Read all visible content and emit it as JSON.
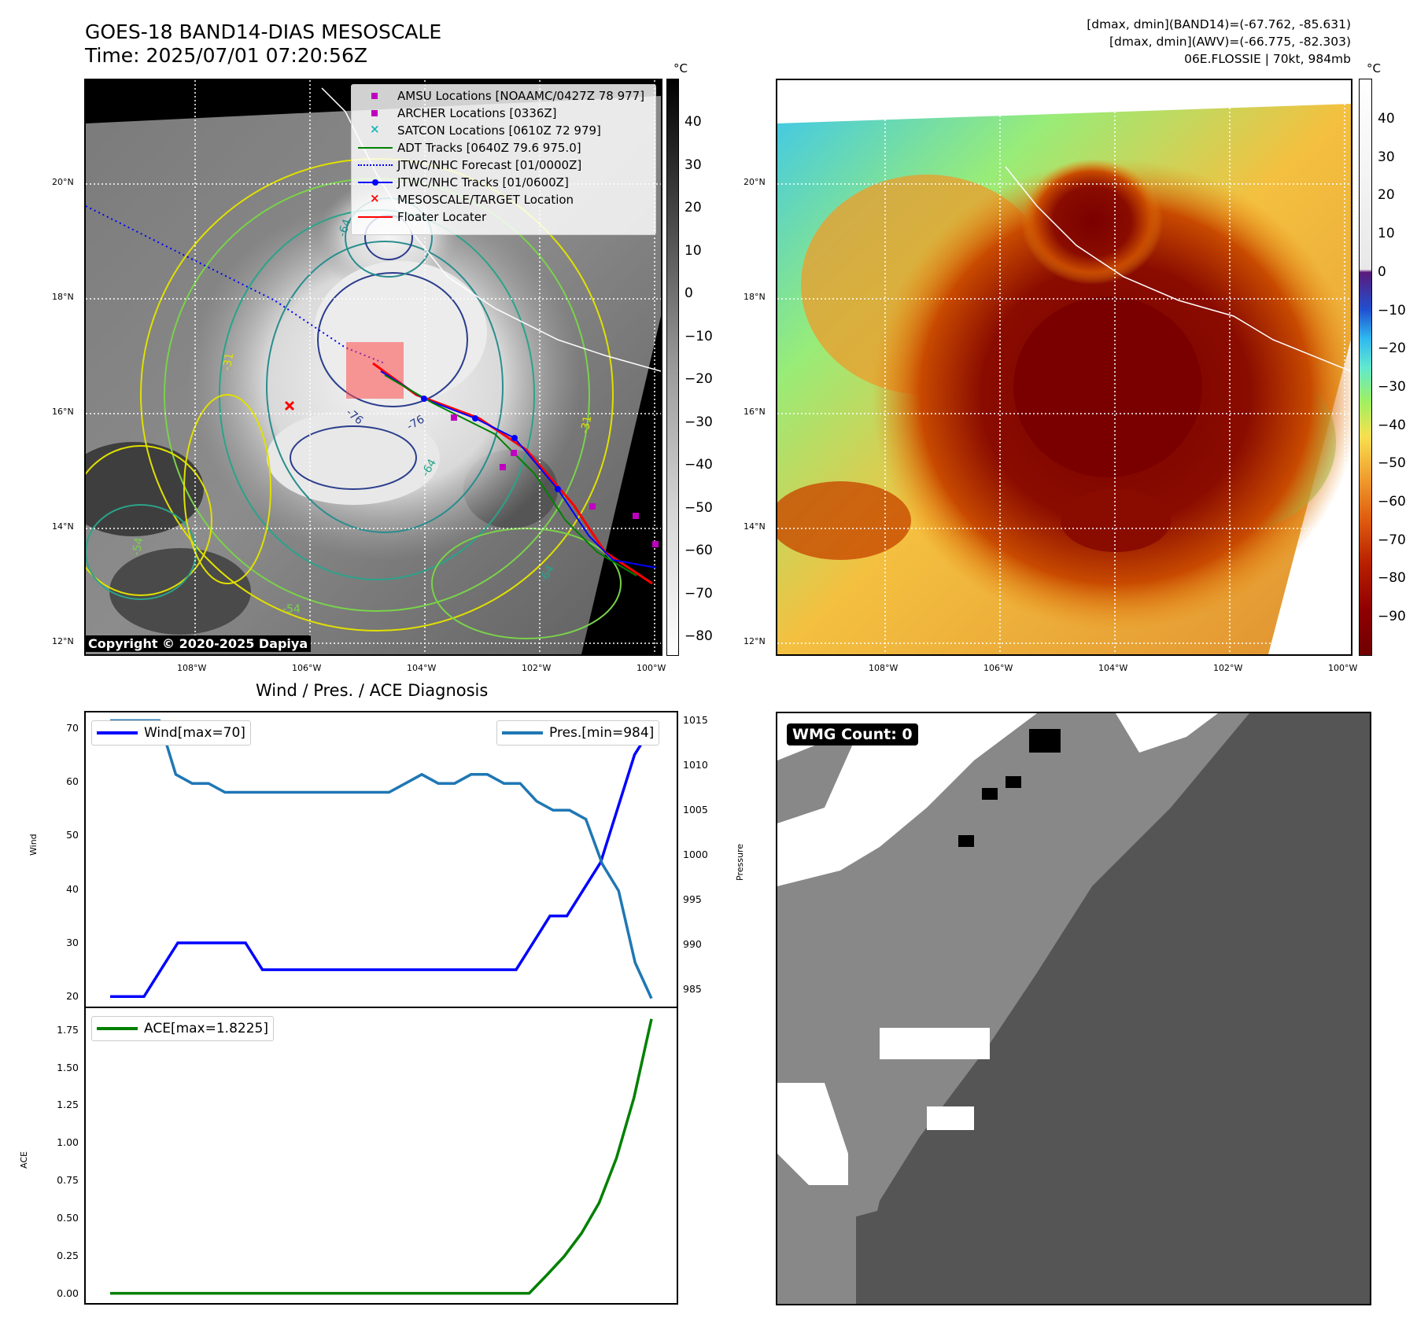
{
  "header": {
    "title": "GOES-18 BAND14-DIAS MESOSCALE",
    "time": "Time: 2025/07/01 07:20:56Z",
    "stats_band14": "[dmax, dmin](BAND14)=(-67.762, -85.631)",
    "stats_awv": "[dmax, dmin](AWV)=(-66.775, -82.303)",
    "storm_info": "06E.FLOSSIE | 70kt, 984mb"
  },
  "map": {
    "lat_ticks": [
      "20°N",
      "18°N",
      "16°N",
      "14°N",
      "12°N"
    ],
    "lon_ticks": [
      "108°W",
      "106°W",
      "104°W",
      "102°W",
      "100°W"
    ],
    "contour_labels": [
      "-64",
      "-76",
      "-76",
      "-31",
      "-54",
      "-64",
      "-31",
      "-64",
      "-54"
    ],
    "copyright": "Copyright © 2020-2025 Dapiya",
    "legend": [
      {
        "label": "AMSU Locations [NOAAMC/0427Z 78 977]",
        "color": "#c000c0",
        "symbol": "square"
      },
      {
        "label": "ARCHER Locations [0336Z]",
        "color": "#c000c0",
        "symbol": "square"
      },
      {
        "label": "SATCON Locations [0610Z 72 979]",
        "color": "#18b8b8",
        "symbol": "x"
      },
      {
        "label": "ADT Tracks [0640Z 79.6 975.0]",
        "color": "#008000",
        "symbol": "line"
      },
      {
        "label": "JTWC/NHC Forecast [01/0000Z]",
        "color": "#0000ff",
        "symbol": "dotted"
      },
      {
        "label": "JTWC/NHC Tracks [01/0600Z]",
        "color": "#0000ff",
        "symbol": "line-dot"
      },
      {
        "label": "MESOSCALE/TARGET Location",
        "color": "#ff0000",
        "symbol": "x"
      },
      {
        "label": "Floater Locater",
        "color": "#ff0000",
        "symbol": "line"
      }
    ]
  },
  "colorbar_gray": {
    "unit": "°C",
    "labels": [
      "40",
      "30",
      "20",
      "10",
      "0",
      "−10",
      "−20",
      "−30",
      "−40",
      "−50",
      "−60",
      "−70",
      "−80"
    ]
  },
  "colorbar_color": {
    "unit": "°C",
    "labels": [
      "40",
      "30",
      "20",
      "10",
      "0",
      "−10",
      "−20",
      "−30",
      "−40",
      "−50",
      "−60",
      "−70",
      "−80",
      "−90"
    ]
  },
  "diagnosis": {
    "title": "Wind / Pres. / ACE Diagnosis",
    "wind_legend": "Wind[max=70]",
    "pres_legend": "Pres.[min=984]",
    "ace_legend": "ACE[max=1.8225]",
    "wind_axis_label": "Wind",
    "pres_axis_label": "Pressure",
    "ace_axis_label": "ACE",
    "wind_ticks": [
      "70",
      "60",
      "50",
      "40",
      "30",
      "20"
    ],
    "pres_ticks": [
      "1015",
      "1010",
      "1005",
      "1000",
      "995",
      "990",
      "985"
    ],
    "ace_ticks": [
      "1.75",
      "1.50",
      "1.25",
      "1.00",
      "0.75",
      "0.50",
      "0.25",
      "0.00"
    ]
  },
  "wmg": {
    "label": "WMG Count: 0"
  },
  "chart_data": [
    {
      "type": "line",
      "title": "Wind / Pres. / ACE Diagnosis",
      "ylabel": "Wind",
      "ylim": [
        18,
        73
      ],
      "series": [
        {
          "name": "Wind[max=70]",
          "color": "#0000ff",
          "values": [
            20,
            20,
            20,
            25,
            30,
            30,
            30,
            30,
            30,
            25,
            25,
            25,
            25,
            25,
            25,
            25,
            25,
            25,
            25,
            25,
            25,
            25,
            25,
            25,
            25,
            30,
            35,
            35,
            40,
            45,
            55,
            65,
            70
          ]
        }
      ]
    },
    {
      "type": "line",
      "ylabel": "Pressure",
      "ylim": [
        983,
        1016
      ],
      "series": [
        {
          "name": "Pres.[min=984]",
          "color": "#1f77b4",
          "values": [
            1015,
            1015,
            1015,
            1015,
            1009,
            1008,
            1008,
            1007,
            1007,
            1007,
            1007,
            1007,
            1007,
            1007,
            1007,
            1007,
            1007,
            1007,
            1008,
            1009,
            1008,
            1008,
            1009,
            1009,
            1008,
            1008,
            1006,
            1005,
            1005,
            1004,
            999,
            996,
            988,
            984
          ]
        }
      ]
    },
    {
      "type": "line",
      "ylabel": "ACE",
      "ylim": [
        -0.07,
        1.9
      ],
      "series": [
        {
          "name": "ACE[max=1.8225]",
          "color": "#008000",
          "values": [
            0,
            0,
            0,
            0,
            0,
            0,
            0,
            0,
            0,
            0,
            0,
            0,
            0,
            0,
            0,
            0,
            0,
            0,
            0,
            0,
            0,
            0,
            0,
            0,
            0,
            0.12,
            0.245,
            0.4,
            0.6,
            0.9,
            1.3,
            1.8225
          ]
        }
      ]
    }
  ]
}
